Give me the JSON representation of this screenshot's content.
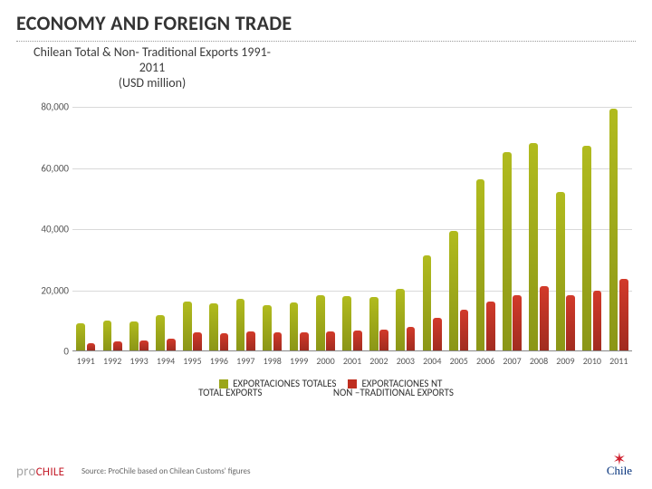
{
  "slide": {
    "title": "ECONOMY AND FOREIGN TRADE"
  },
  "chart": {
    "type": "bar",
    "title_line1": "Chilean Total & Non- Traditional Exports 1991-",
    "title_line2": "2011",
    "title_line3": "(USD million)",
    "title_fontsize": 14,
    "categories": [
      "1991",
      "1992",
      "1993",
      "1994",
      "1995",
      "1996",
      "1997",
      "1998",
      "1999",
      "2000",
      "2001",
      "2002",
      "2003",
      "2004",
      "2005",
      "2006",
      "2007",
      "2008",
      "2009",
      "2010",
      "2011"
    ],
    "series": [
      {
        "name": "EXPORTACIONES TOTALES",
        "alt_name": "TOTAL EXPORTS",
        "color": "#9aa519",
        "values": [
          8900,
          9900,
          9400,
          11500,
          16000,
          15400,
          17000,
          14800,
          15600,
          18200,
          17700,
          17400,
          20100,
          31000,
          39000,
          56000,
          65000,
          68000,
          52000,
          67000,
          79000
        ]
      },
      {
        "name": "EXPORTACIONES NT",
        "alt_name": "NON –TRADITIONAL EXPORTS",
        "color": "#bf2e1f",
        "values": [
          2500,
          3100,
          3300,
          4000,
          5800,
          5600,
          6100,
          5800,
          6000,
          6300,
          6500,
          6800,
          7600,
          10800,
          13200,
          15900,
          18200,
          21000,
          18000,
          19500,
          23500
        ]
      }
    ],
    "ylim": [
      0,
      80000
    ],
    "ytick_step": 20000,
    "ytick_labels": [
      "0",
      "20,000",
      "40,000",
      "60,000",
      "80,000"
    ],
    "background_color": "#ffffff",
    "grid_color": "#d9d9d9",
    "axis_color": "#888888",
    "bar_group_width_ratio": 0.72,
    "bar_gap_ratio": 0.06,
    "label_fontsize": 11
  },
  "source_note": "Source: ProChile based on Chilean Customs' figures",
  "logos": {
    "prochile_pro": "pro",
    "prochile_chile": "CHILE",
    "chile_mark_text": "Chile"
  }
}
